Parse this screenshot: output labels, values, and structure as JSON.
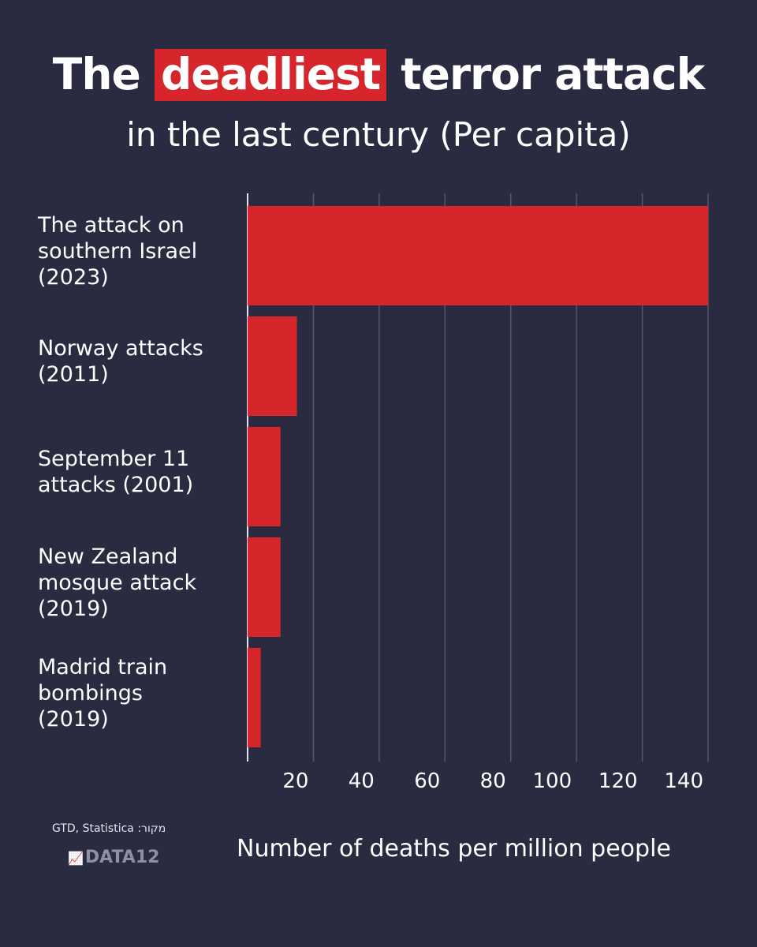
{
  "title": {
    "highlight_prefix": "The",
    "highlight": "deadliest",
    "rest": "terror attack",
    "highlight_color": "#d6262b"
  },
  "subtitle": "in the last century (Per capita)",
  "chart_data": {
    "type": "bar",
    "orientation": "horizontal",
    "categories": [
      "The attack on\nsouthern Israel\n(2023)",
      "Norway attacks\n(2011)",
      "September 11\nattacks (2001)",
      "New Zealand\nmosque attack\n(2019)",
      "Madrid train\nbombings\n(2019)"
    ],
    "values": [
      140,
      15,
      10,
      10,
      4
    ],
    "bar_color": "#d6262b",
    "xlim": [
      0,
      140
    ],
    "xticks": [
      20,
      40,
      60,
      80,
      100,
      120,
      140
    ],
    "xlabel": "Number of deaths per million people",
    "grid": true
  },
  "source": "GTD, Statistica :מקור",
  "brand": "DATA12",
  "brand_icon": "chart-growth-icon",
  "colors": {
    "background": "#2a2b40",
    "gridline": "#55566b",
    "text": "#ffffff"
  }
}
